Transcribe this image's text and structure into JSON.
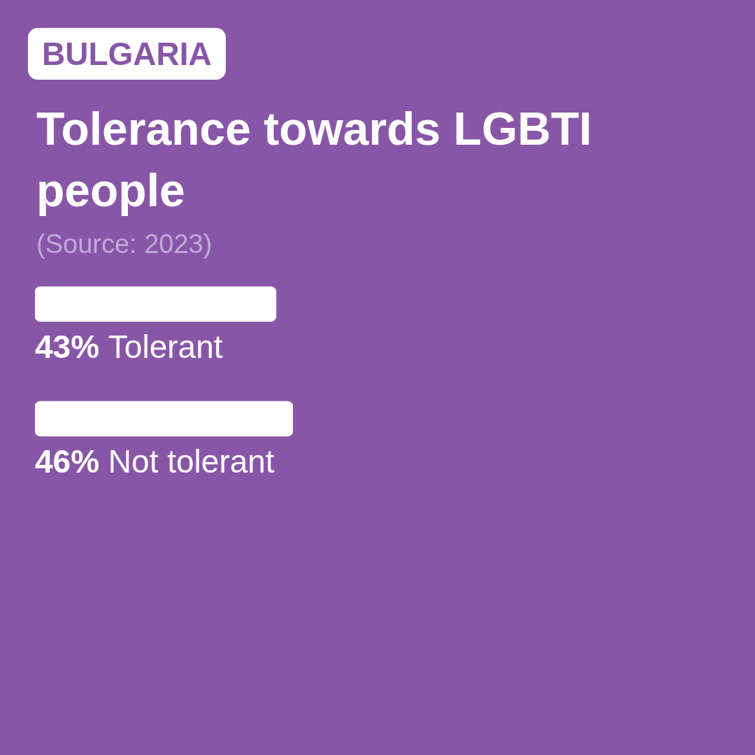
{
  "chart_data": {
    "type": "bar",
    "orientation": "horizontal",
    "subtitle": "BULGARIA",
    "title": "Tolerance towards LGBTI people",
    "annotations": [
      "(Source: 2023)"
    ],
    "categories": [
      "Tolerant",
      "Not tolerant"
    ],
    "values": [
      43,
      46
    ],
    "value_labels": [
      "43%",
      "46%"
    ],
    "color": "#ffffff",
    "legend": false
  }
}
